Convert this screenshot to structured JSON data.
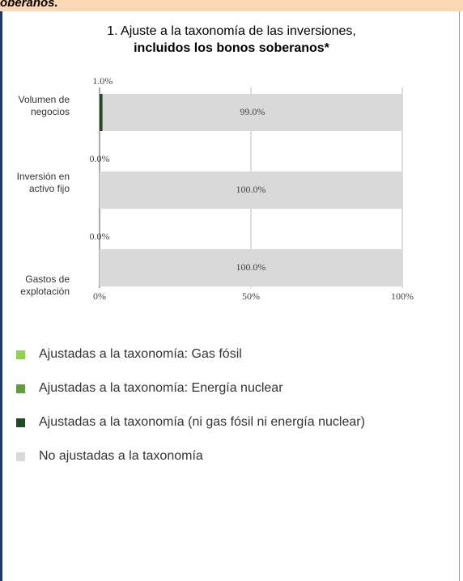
{
  "header": {
    "text": "oberanos."
  },
  "chart_data": {
    "type": "stacked-bar-horizontal",
    "title": "1. Ajuste a la taxonomía de las inversiones,",
    "subtitle": "incluidos los bonos soberanos*",
    "categories": [
      "Volumen de negocios",
      "Inversión en activo fijo",
      "Gastos de explotación"
    ],
    "series": [
      {
        "name": "Ajustadas a la taxonomía: Gas fósil",
        "color": "#92d050",
        "values": [
          0,
          0,
          0
        ]
      },
      {
        "name": "Ajustadas a la taxonomía: Energía nuclear",
        "color": "#5e9e3c",
        "values": [
          0,
          0,
          0
        ]
      },
      {
        "name": "Ajustadas a la taxonomía (ni gas fósil ni energía nuclear)",
        "color": "#1d4d25",
        "values": [
          1.0,
          0,
          0
        ],
        "value_labels": [
          "1.0%",
          "0.0%",
          "0.0%"
        ]
      },
      {
        "name": "No ajustadas a la taxonomía",
        "color": "#d9d9d9",
        "values": [
          99.0,
          100,
          100
        ],
        "value_labels": [
          "99.0%",
          "100.0%",
          "100.0%"
        ]
      }
    ],
    "xlim": [
      0,
      100
    ],
    "xticks": [
      {
        "value": 0,
        "label": "0%"
      },
      {
        "value": 50,
        "label": "50%"
      },
      {
        "value": 100,
        "label": "100%"
      }
    ],
    "grid": true
  }
}
